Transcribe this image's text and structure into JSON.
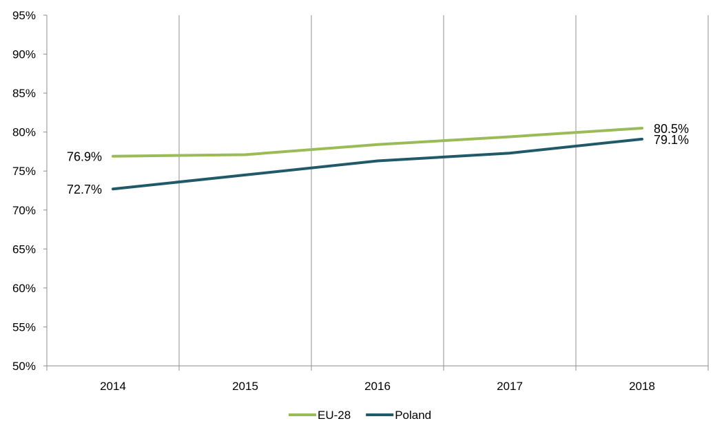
{
  "chart_data": {
    "type": "line",
    "title": "",
    "xlabel": "",
    "ylabel": "",
    "categories": [
      "2014",
      "2015",
      "2016",
      "2017",
      "2018"
    ],
    "ylim": [
      50,
      95
    ],
    "yticks": [
      "50%",
      "55%",
      "60%",
      "65%",
      "70%",
      "75%",
      "80%",
      "85%",
      "90%",
      "95%"
    ],
    "grid": "vertical",
    "legend_position": "bottom",
    "series": [
      {
        "name": "EU-28",
        "color": "#9BBB59",
        "values": [
          76.9,
          77.1,
          78.4,
          79.4,
          80.5
        ],
        "labels": {
          "first": "76.9%",
          "last": "80.5%"
        }
      },
      {
        "name": "Poland",
        "color": "#215968",
        "values": [
          72.7,
          74.5,
          76.3,
          77.3,
          79.1
        ],
        "labels": {
          "first": "72.7%",
          "last": "79.1%"
        }
      }
    ]
  }
}
